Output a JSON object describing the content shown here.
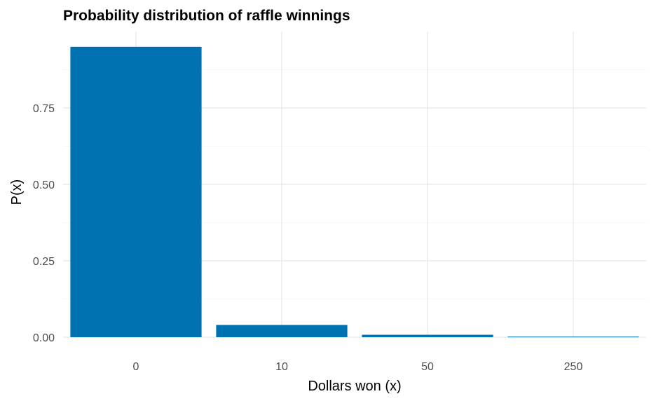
{
  "chart_data": {
    "type": "bar",
    "title": "Probability distribution of raffle winnings",
    "xlabel": "Dollars won (x)",
    "ylabel": "P(x)",
    "categories": [
      "0",
      "10",
      "50",
      "250"
    ],
    "values": [
      0.95,
      0.04,
      0.008,
      0.002
    ],
    "ylim": [
      0,
      0.95
    ],
    "yticks": [
      0.0,
      0.25,
      0.5,
      0.75
    ],
    "ytick_labels": [
      "0.00",
      "0.25",
      "0.50",
      "0.75"
    ],
    "bar_color": "#0072B2",
    "grid": true,
    "legend": "none"
  }
}
